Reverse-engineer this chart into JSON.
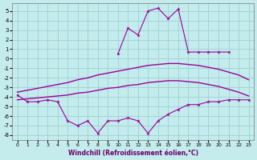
{
  "xlabel": "Windchill (Refroidissement éolien,°C)",
  "bg_color": "#c5eced",
  "grid_color": "#a0d4d8",
  "line_color": "#990099",
  "ylim": [
    -8.5,
    5.8
  ],
  "xlim": [
    -0.5,
    23.5
  ],
  "yticks": [
    -8,
    -7,
    -6,
    -5,
    -4,
    -3,
    -2,
    -1,
    0,
    1,
    2,
    3,
    4,
    5
  ],
  "xticks": [
    0,
    1,
    2,
    3,
    4,
    5,
    6,
    7,
    8,
    9,
    10,
    11,
    12,
    13,
    14,
    15,
    16,
    17,
    18,
    19,
    20,
    21,
    22,
    23
  ],
  "top_jagged_x": [
    10,
    11,
    12,
    13,
    14,
    15,
    16,
    17,
    18,
    19,
    20,
    21
  ],
  "top_jagged_y": [
    0.5,
    3.2,
    2.5,
    5.0,
    5.3,
    4.2,
    5.2,
    0.7,
    0.7,
    0.7,
    0.7,
    0.7
  ],
  "smooth_upper_x": [
    0,
    1,
    2,
    3,
    4,
    5,
    6,
    7,
    8,
    9,
    10,
    11,
    12,
    13,
    14,
    15,
    16,
    17,
    18,
    19,
    20,
    21,
    22,
    23
  ],
  "smooth_upper_y": [
    -3.5,
    -3.3,
    -3.1,
    -2.9,
    -2.7,
    -2.5,
    -2.2,
    -2.0,
    -1.7,
    -1.5,
    -1.3,
    -1.1,
    -0.9,
    -0.7,
    -0.6,
    -0.5,
    -0.5,
    -0.6,
    -0.7,
    -0.9,
    -1.1,
    -1.4,
    -1.7,
    -2.2
  ],
  "smooth_lower_x": [
    0,
    1,
    2,
    3,
    4,
    5,
    6,
    7,
    8,
    9,
    10,
    11,
    12,
    13,
    14,
    15,
    16,
    17,
    18,
    19,
    20,
    21,
    22,
    23
  ],
  "smooth_lower_y": [
    -4.3,
    -4.2,
    -4.1,
    -4.0,
    -3.9,
    -3.8,
    -3.6,
    -3.5,
    -3.3,
    -3.1,
    -3.0,
    -2.8,
    -2.7,
    -2.5,
    -2.4,
    -2.3,
    -2.3,
    -2.4,
    -2.5,
    -2.7,
    -2.9,
    -3.2,
    -3.5,
    -3.9
  ],
  "bot_jagged_x": [
    0,
    1,
    2,
    3,
    4,
    5,
    6,
    7,
    8,
    9,
    10,
    11,
    12,
    13,
    14,
    15,
    16,
    17,
    18,
    19,
    20,
    21,
    22,
    23
  ],
  "bot_jagged_y": [
    -3.8,
    -4.5,
    -4.5,
    -4.3,
    -4.5,
    -6.5,
    -7.0,
    -6.5,
    -7.8,
    -6.5,
    -6.5,
    -6.2,
    -6.5,
    -7.8,
    -6.5,
    -5.8,
    -5.3,
    -4.8,
    -4.8,
    -4.5,
    -4.5,
    -4.3,
    -4.3,
    -4.3
  ]
}
